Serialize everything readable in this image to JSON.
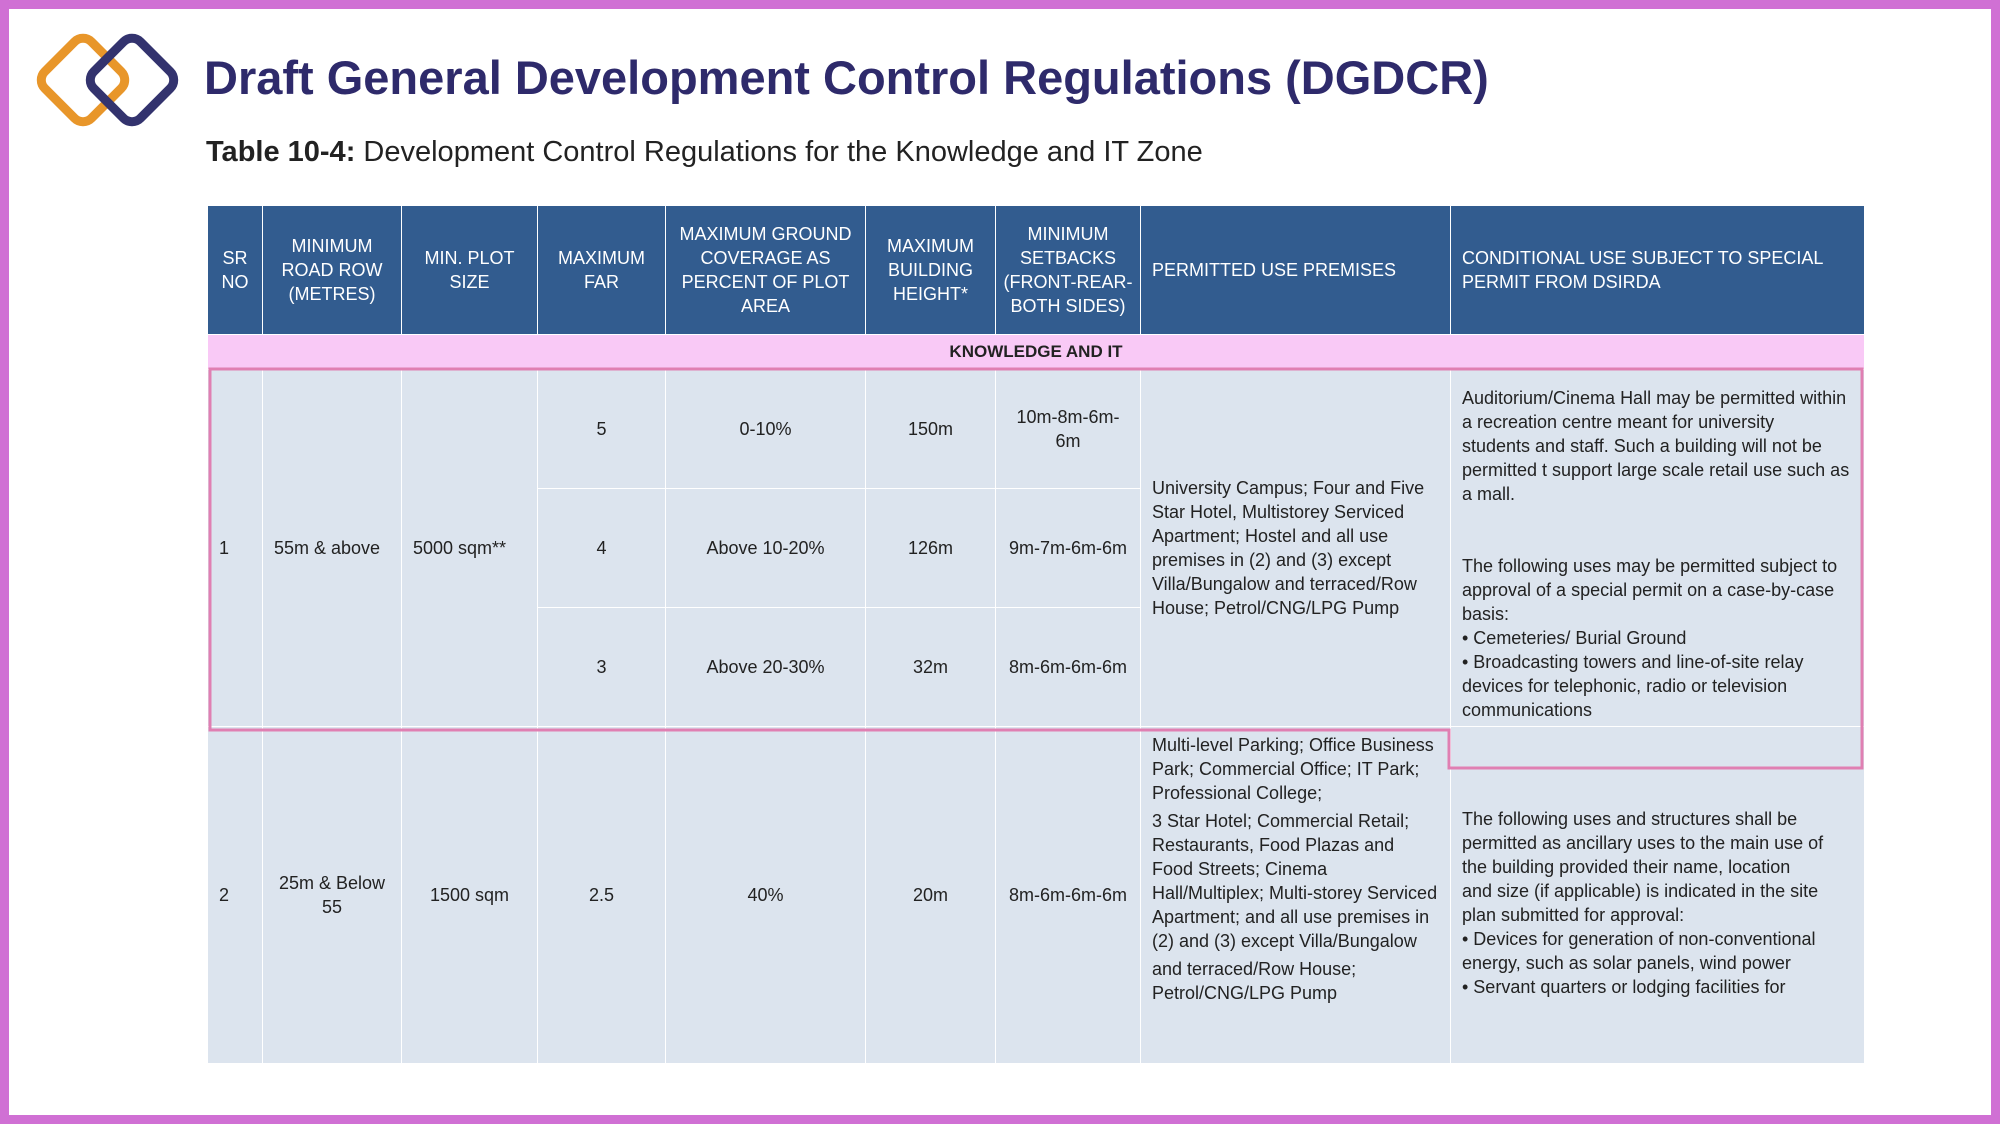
{
  "header": {
    "title": "Draft General Development Control Regulations (DGDCR)",
    "subtitle_label": "Table 10-4:",
    "subtitle_text": " Development Control Regulations for the Knowledge and IT Zone",
    "logo": "double-diamond-logo"
  },
  "colors": {
    "frame": "#d070d4",
    "title": "#2e2a6b",
    "header_bg": "#325c8f",
    "band_bg": "#f9c9f6",
    "cell_bg": "#dce4ee",
    "highlight": "#e07fb2",
    "logo_orange": "#e8962a",
    "logo_navy": "#33336e"
  },
  "table": {
    "columns": [
      "SR NO",
      "MINIMUM ROAD ROW (METRES)",
      "MIN. PLOT SIZE",
      "MAXIMUM FAR",
      "MAXIMUM GROUND COVERAGE AS PERCENT OF PLOT AREA",
      "MAXIMUM BUILDING HEIGHT*",
      "MINIMUM SETBACKS (FRONT-REAR-BOTH SIDES)",
      "PERMITTED USE PREMISES",
      "CONDITIONAL USE SUBJECT TO SPECIAL PERMIT FROM DSIRDA"
    ],
    "band": "KNOWLEDGE AND IT",
    "row1": {
      "sr": "1",
      "road": "55m & above",
      "plot": "5000 sqm**",
      "tiers": [
        {
          "far": "5",
          "coverage": "0-10%",
          "height": "150m",
          "setbacks": "10m-8m-6m-6m"
        },
        {
          "far": "4",
          "coverage": "Above 10-20%",
          "height": "126m",
          "setbacks": "9m-7m-6m-6m"
        },
        {
          "far": "3",
          "coverage": "Above 20-30%",
          "height": "32m",
          "setbacks": "8m-6m-6m-6m"
        }
      ],
      "permitted": "University Campus; Four and Five Star Hotel, Multistorey Serviced Apartment; Hostel and all use premises in (2) and (3) except Villa/Bungalow and terraced/Row House; Petrol/CNG/LPG Pump",
      "conditional": [
        "Auditorium/Cinema Hall may be permitted within a recreation centre meant for university",
        "students and staff. Such a building will not be permitted t support large scale retail use such as a mall.",
        "",
        "The following uses may be permitted subject to approval of a special permit on a case-by-case basis:",
        "• Cemeteries/ Burial Ground",
        "• Broadcasting towers and line-of-site relay devices for telephonic, radio or television communications"
      ]
    },
    "row2": {
      "sr": "2",
      "road": "25m & Below 55",
      "plot": "1500 sqm",
      "far": "2.5",
      "coverage": "40%",
      "height": "20m",
      "setbacks": "8m-6m-6m-6m",
      "permitted": [
        "Multi-level Parking; Office Business Park; Commercial Office; IT Park; Professional College;",
        "3 Star Hotel; Commercial Retail; Restaurants, Food Plazas and Food Streets; Cinema Hall/Multiplex; Multi-storey Serviced Apartment; and all use premises in (2) and (3) except Villa/Bungalow",
        "and terraced/Row House; Petrol/CNG/LPG Pump"
      ],
      "conditional": [
        "The following uses and structures shall be permitted as ancillary uses to the main use of the building provided their name, location",
        "and size (if applicable) is indicated in the site plan submitted for approval:",
        "• Devices for generation of non-conventional energy, such as solar panels, wind power",
        "• Servant quarters or lodging facilities for"
      ]
    }
  }
}
